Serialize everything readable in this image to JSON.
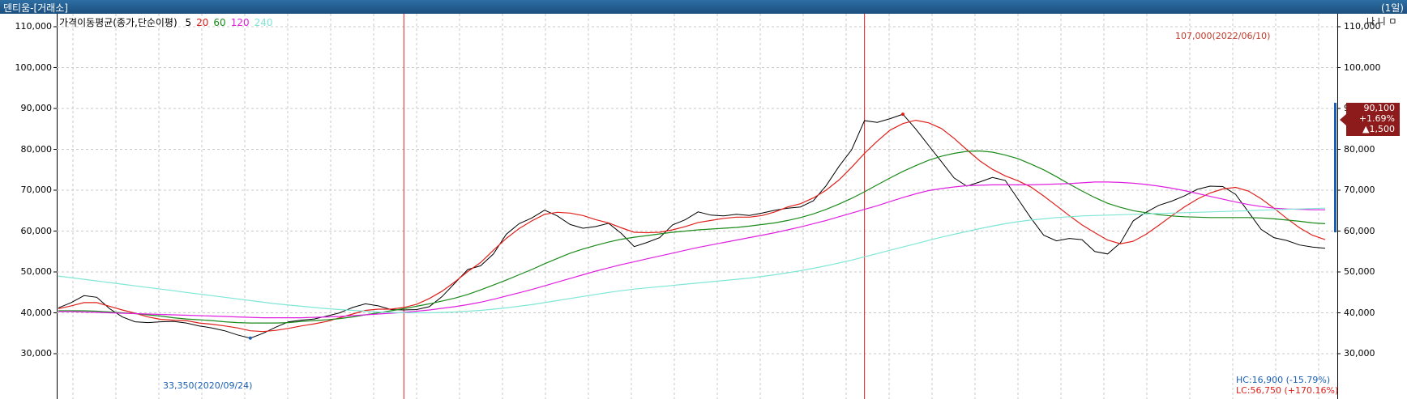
{
  "window": {
    "title": "덴티움-[거래소]",
    "period": "(1일)",
    "controls": "나 니 ㅁ"
  },
  "legend": {
    "title": "가격이동평균(종가,단순이평)",
    "items": [
      {
        "label": "5",
        "color": "#000000"
      },
      {
        "label": "20",
        "color": "#e0201b"
      },
      {
        "label": "60",
        "color": "#1b8a1b"
      },
      {
        "label": "120",
        "color": "#e020e0"
      },
      {
        "label": "240",
        "color": "#7fe6d6"
      }
    ]
  },
  "annotations": {
    "max_label": "107,000(2022/06/10)",
    "min_label": "33,350(2020/09/24)",
    "hc_label": "HC:16,900 (-15.79%)",
    "lc_label": "LC:56,750 (+170.16%)"
  },
  "price_box": {
    "price": "90,100",
    "change_pct": "+1.69%",
    "change_abs": "▲1,500",
    "color": "#8e1b1b"
  },
  "colors": {
    "up": "#e0201b",
    "down": "#1a5fb4",
    "grid": "#c8c8c8"
  },
  "chart_data": {
    "type": "line",
    "title": "",
    "xlabel": "",
    "ylabel": "",
    "ylim": [
      30000,
      110000
    ],
    "grid": true,
    "yticks": [
      "30,000",
      "40,000",
      "50,000",
      "60,000",
      "70,000",
      "80,000",
      "90,000",
      "100,000",
      "110,000"
    ],
    "ytick_values": [
      30000,
      40000,
      50000,
      60000,
      70000,
      80000,
      90000,
      100000,
      110000
    ],
    "x_count": 100,
    "year_separators": [
      27,
      63
    ],
    "series": [
      {
        "name": "5",
        "color": "#000000",
        "values": [
          41200,
          42500,
          44200,
          43800,
          41000,
          39000,
          37800,
          37600,
          37800,
          37900,
          37500,
          36800,
          36300,
          35600,
          34600,
          33800,
          35000,
          36500,
          37800,
          38200,
          38500,
          39200,
          40000,
          41300,
          42200,
          41700,
          40800,
          40700,
          40800,
          41500,
          44000,
          47300,
          50600,
          51500,
          54400,
          59200,
          61800,
          63200,
          65100,
          63700,
          61600,
          60700,
          61100,
          61900,
          59400,
          56200,
          57200,
          58400,
          61500,
          62800,
          64700,
          63900,
          63700,
          64100,
          63800,
          64400,
          65100,
          65600,
          65900,
          67400,
          71100,
          75800,
          79900,
          87000,
          86600,
          87500,
          88600,
          85000,
          81000,
          77000,
          73000,
          71000,
          72000,
          73100,
          72400,
          67800,
          63200,
          59000,
          57600,
          58200,
          57900,
          55000,
          54400,
          57100,
          62500,
          64600,
          66300,
          67300,
          68600,
          70200,
          71000,
          70900,
          69000,
          64700,
          60400,
          58400,
          57700,
          56600,
          56100,
          55800
        ]
      },
      {
        "name": "20",
        "color": "#e0201b",
        "values": [
          41000,
          41700,
          42500,
          42500,
          41600,
          40700,
          39900,
          39000,
          38400,
          38200,
          38100,
          37500,
          37200,
          36800,
          36300,
          35600,
          35400,
          35700,
          36200,
          36800,
          37300,
          37900,
          38800,
          39700,
          40600,
          40900,
          40900,
          41300,
          42100,
          43500,
          45300,
          47600,
          50100,
          52300,
          55300,
          58200,
          60600,
          62500,
          64100,
          64600,
          64400,
          63800,
          62800,
          62000,
          60800,
          59700,
          59600,
          59700,
          60300,
          61100,
          62100,
          62600,
          63100,
          63400,
          63400,
          63800,
          64700,
          65900,
          66700,
          68100,
          70000,
          72500,
          75600,
          79000,
          82000,
          84700,
          86300,
          87100,
          86500,
          85100,
          82700,
          79900,
          77200,
          75100,
          73500,
          72300,
          70800,
          68600,
          66200,
          63800,
          61500,
          59600,
          57800,
          56900,
          57500,
          59200,
          61400,
          63700,
          65900,
          67800,
          69300,
          70300,
          70700,
          69800,
          67900,
          65600,
          63100,
          60800,
          59000,
          57900
        ]
      },
      {
        "name": "60",
        "color": "#1b8a1b",
        "values": [
          40500,
          40500,
          40500,
          40400,
          40200,
          40000,
          39800,
          39500,
          39200,
          38800,
          38500,
          38300,
          38100,
          37800,
          37600,
          37500,
          37500,
          37500,
          37600,
          37900,
          38100,
          38300,
          38600,
          39000,
          39500,
          40000,
          40500,
          41000,
          41600,
          42200,
          42900,
          43600,
          44500,
          45600,
          46800,
          48000,
          49300,
          50600,
          52000,
          53300,
          54600,
          55600,
          56500,
          57300,
          58000,
          58500,
          58900,
          59300,
          59700,
          60000,
          60300,
          60500,
          60700,
          60900,
          61200,
          61600,
          62000,
          62600,
          63300,
          64200,
          65300,
          66600,
          68000,
          69600,
          71300,
          73000,
          74600,
          76000,
          77300,
          78300,
          79000,
          79500,
          79600,
          79300,
          78600,
          77700,
          76400,
          75000,
          73300,
          71500,
          69800,
          68200,
          66800,
          65800,
          65000,
          64500,
          64000,
          63700,
          63500,
          63400,
          63300,
          63300,
          63300,
          63300,
          63200,
          63000,
          62700,
          62400,
          62000,
          61800
        ]
      },
      {
        "name": "120",
        "color": "#e020e0",
        "values": [
          40300,
          40300,
          40200,
          40100,
          40000,
          39900,
          39800,
          39700,
          39600,
          39500,
          39400,
          39300,
          39200,
          39100,
          39000,
          38900,
          38800,
          38800,
          38800,
          38800,
          38900,
          39000,
          39100,
          39300,
          39500,
          39700,
          39900,
          40100,
          40400,
          40700,
          41100,
          41500,
          42000,
          42600,
          43300,
          44100,
          44900,
          45700,
          46600,
          47500,
          48400,
          49300,
          50200,
          51000,
          51800,
          52500,
          53200,
          53900,
          54600,
          55300,
          56000,
          56600,
          57200,
          57800,
          58400,
          59000,
          59600,
          60300,
          61000,
          61800,
          62600,
          63500,
          64400,
          65300,
          66200,
          67200,
          68200,
          69100,
          69900,
          70400,
          70800,
          71100,
          71200,
          71300,
          71300,
          71300,
          71300,
          71400,
          71500,
          71600,
          71800,
          72000,
          72000,
          71900,
          71700,
          71400,
          71000,
          70500,
          69900,
          69200,
          68500,
          67800,
          67100,
          66500,
          66000,
          65600,
          65400,
          65300,
          65200,
          65200
        ]
      },
      {
        "name": "240",
        "color": "#7fe6d6",
        "values": [
          49000,
          48600,
          48200,
          47800,
          47400,
          47000,
          46600,
          46200,
          45800,
          45400,
          45000,
          44600,
          44200,
          43800,
          43400,
          43000,
          42600,
          42200,
          41900,
          41600,
          41300,
          41000,
          40800,
          40600,
          40400,
          40200,
          40100,
          40000,
          40000,
          40000,
          40100,
          40200,
          40400,
          40600,
          40900,
          41200,
          41600,
          42000,
          42500,
          43000,
          43500,
          44000,
          44500,
          45000,
          45400,
          45800,
          46100,
          46400,
          46700,
          47000,
          47300,
          47600,
          47900,
          48200,
          48500,
          48900,
          49300,
          49800,
          50300,
          50900,
          51500,
          52200,
          52900,
          53700,
          54500,
          55300,
          56100,
          56900,
          57700,
          58500,
          59200,
          59900,
          60600,
          61200,
          61800,
          62300,
          62700,
          63000,
          63300,
          63500,
          63700,
          63800,
          63900,
          64000,
          64100,
          64200,
          64300,
          64400,
          64500,
          64600,
          64700,
          64800,
          64900,
          65000,
          65100,
          65200,
          65300,
          65400,
          65500,
          65600
        ]
      }
    ]
  }
}
